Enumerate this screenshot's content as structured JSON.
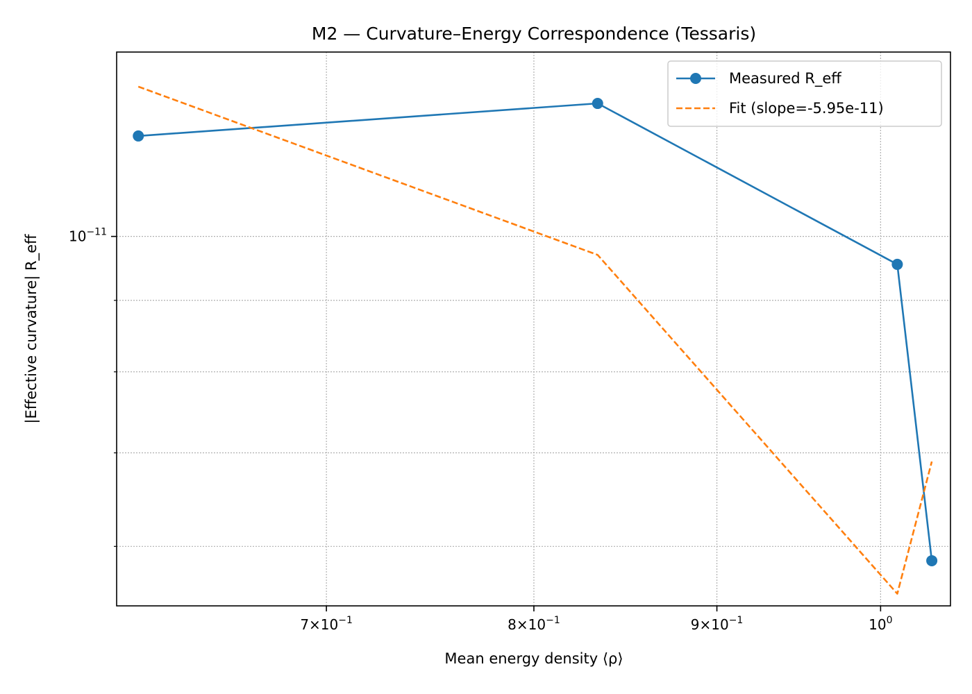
{
  "chart_data": {
    "type": "line",
    "title": "M2 — Curvature–Energy Correspondence (Tessaris)",
    "xlabel": "Mean energy density ⟨ρ⟩",
    "ylabel": "|Effective curvature| R_eff",
    "x_scale": "log",
    "y_scale": "log",
    "xlim": [
      0.6116,
      1.046
    ],
    "ylim": [
      5.44e-12,
      1.355e-11
    ],
    "grid": true,
    "legend_position": "top-right",
    "x_ticks": [
      {
        "value": 0.7,
        "base": "7×10",
        "exp": "−1"
      },
      {
        "value": 0.8,
        "base": "8×10",
        "exp": "−1"
      },
      {
        "value": 0.9,
        "base": "9×10",
        "exp": "−1"
      },
      {
        "value": 1.0,
        "base": "10",
        "exp": "0"
      }
    ],
    "y_ticks": [
      {
        "value": 1e-11,
        "base": "10",
        "exp": "−11"
      }
    ],
    "y_minor_ticks": [
      6e-12,
      7e-12,
      8e-12,
      9e-12,
      2e-11
    ],
    "x_minor_ticks": [],
    "series": [
      {
        "name": "Measured R_eff",
        "color": "#1f77b4",
        "style": "solid",
        "marker": "circle",
        "x": [
          0.6202,
          0.8335,
          1.0108,
          1.0335
        ],
        "y": [
          1.18e-11,
          1.245e-11,
          9.55e-12,
          5.86e-12
        ]
      },
      {
        "name": "Fit (slope=-5.95e-11)",
        "color": "#ff7f0e",
        "style": "dashed",
        "marker": "none",
        "x": [
          0.6202,
          0.8335,
          1.0108,
          1.0335
        ],
        "y": [
          1.28e-11,
          9.7e-12,
          5.55e-12,
          6.9e-12
        ]
      }
    ]
  }
}
